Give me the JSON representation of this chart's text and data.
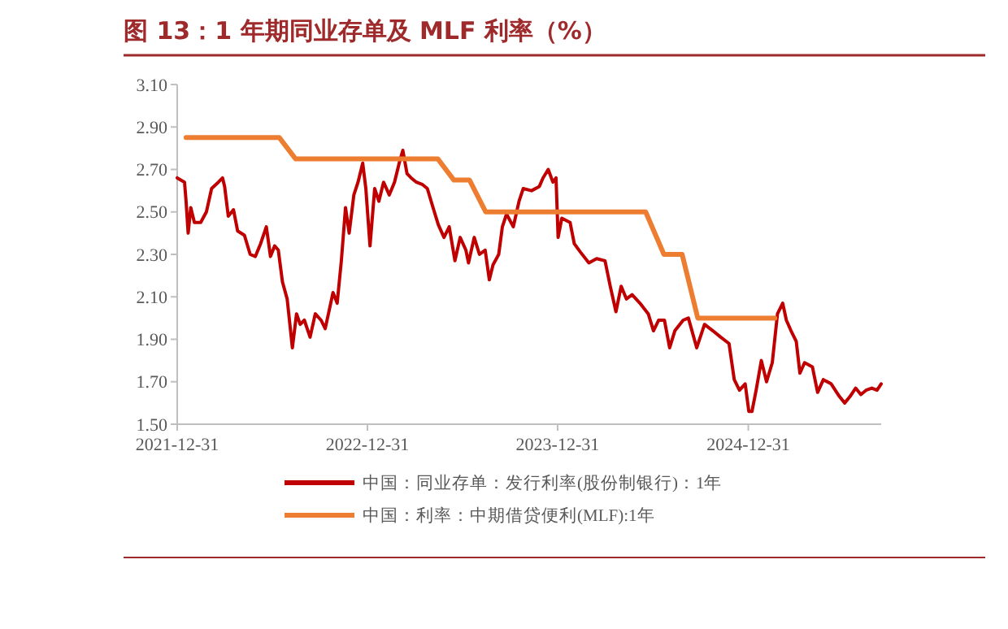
{
  "chart_data": {
    "type": "line",
    "title": "图 13：1 年期同业存单及 MLF 利率（%）",
    "xlim": [
      "2021-12-31",
      "2025-09-12"
    ],
    "xticks": [
      "2021-12-31",
      "2022-12-31",
      "2023-12-31",
      "2024-12-31"
    ],
    "ylim": [
      1.5,
      3.1
    ],
    "yticks": [
      {
        "value": 1.5,
        "label": "1.50"
      },
      {
        "value": 1.7,
        "label": "1.70"
      },
      {
        "value": 1.9,
        "label": "1.90"
      },
      {
        "value": 2.1,
        "label": "2.10"
      },
      {
        "value": 2.3,
        "label": "2.30"
      },
      {
        "value": 2.5,
        "label": "2.50"
      },
      {
        "value": 2.7,
        "label": "2.70"
      },
      {
        "value": 2.9,
        "label": "2.90"
      },
      {
        "value": 3.1,
        "label": "3.10"
      }
    ],
    "grid": false,
    "legend": "bottom",
    "marker": "none",
    "line_style": "solid",
    "series": [
      {
        "name": "中国：同业存单：发行利率(股份制银行)：1年",
        "color": "#c00000",
        "x": [
          "2021-12-31",
          "2022-01-14",
          "2022-01-17",
          "2022-01-21",
          "2022-01-26",
          "2022-02-02",
          "2022-02-14",
          "2022-02-25",
          "2022-03-07",
          "2022-03-20",
          "2022-03-28",
          "2022-04-01",
          "2022-04-08",
          "2022-04-18",
          "2022-04-26",
          "2022-05-09",
          "2022-05-20",
          "2022-05-30",
          "2022-06-09",
          "2022-06-20",
          "2022-06-28",
          "2022-07-06",
          "2022-07-13",
          "2022-07-21",
          "2022-07-30",
          "2022-08-06",
          "2022-08-09",
          "2022-08-17",
          "2022-08-24",
          "2022-09-01",
          "2022-09-12",
          "2022-09-22",
          "2022-10-03",
          "2022-10-11",
          "2022-10-19",
          "2022-10-26",
          "2022-11-03",
          "2022-11-11",
          "2022-11-19",
          "2022-11-26",
          "2022-12-05",
          "2022-12-13",
          "2022-12-22",
          "2022-12-28",
          "2023-01-05",
          "2023-01-14",
          "2023-01-22",
          "2023-01-31",
          "2023-02-11",
          "2023-02-21",
          "2023-03-02",
          "2023-03-09",
          "2023-03-17",
          "2023-03-25",
          "2023-04-04",
          "2023-04-15",
          "2023-04-25",
          "2023-05-06",
          "2023-05-16",
          "2023-05-27",
          "2023-06-06",
          "2023-06-17",
          "2023-06-27",
          "2023-07-08",
          "2023-07-13",
          "2023-07-24",
          "2023-08-03",
          "2023-08-14",
          "2023-08-22",
          "2023-08-29",
          "2023-09-09",
          "2023-09-16",
          "2023-09-24",
          "2023-10-07",
          "2023-10-18",
          "2023-10-26",
          "2023-11-11",
          "2023-11-26",
          "2023-12-03",
          "2023-12-13",
          "2023-12-22",
          "2023-12-28",
          "2024-01-01",
          "2024-01-08",
          "2024-01-24",
          "2024-02-01",
          "2024-02-13",
          "2024-02-29",
          "2024-03-15",
          "2024-03-31",
          "2024-04-10",
          "2024-04-21",
          "2024-05-01",
          "2024-05-11",
          "2024-05-22",
          "2024-06-06",
          "2024-06-22",
          "2024-07-02",
          "2024-07-12",
          "2024-07-23",
          "2024-08-02",
          "2024-08-12",
          "2024-08-28",
          "2024-09-07",
          "2024-09-23",
          "2024-10-08",
          "2024-10-24",
          "2024-11-08",
          "2024-11-24",
          "2024-12-04",
          "2024-12-14",
          "2024-12-25",
          "2025-01-01",
          "2025-01-07",
          "2025-01-15",
          "2025-01-25",
          "2025-02-04",
          "2025-02-15",
          "2025-02-25",
          "2025-03-07",
          "2025-03-14",
          "2025-03-23",
          "2025-04-02",
          "2025-04-09",
          "2025-04-18",
          "2025-05-03",
          "2025-05-13",
          "2025-05-24",
          "2025-06-08",
          "2025-06-24",
          "2025-07-04",
          "2025-07-14",
          "2025-07-25",
          "2025-08-04",
          "2025-08-14",
          "2025-08-25",
          "2025-09-04",
          "2025-09-12"
        ],
        "values": [
          2.66,
          2.64,
          2.55,
          2.4,
          2.52,
          2.45,
          2.45,
          2.5,
          2.61,
          2.64,
          2.66,
          2.62,
          2.48,
          2.51,
          2.41,
          2.39,
          2.3,
          2.29,
          2.35,
          2.43,
          2.29,
          2.34,
          2.32,
          2.17,
          2.09,
          1.93,
          1.86,
          2.02,
          1.97,
          1.99,
          1.91,
          2.02,
          1.99,
          1.95,
          2.04,
          2.12,
          2.07,
          2.27,
          2.52,
          2.4,
          2.58,
          2.64,
          2.73,
          2.61,
          2.34,
          2.61,
          2.55,
          2.64,
          2.58,
          2.64,
          2.73,
          2.79,
          2.68,
          2.66,
          2.64,
          2.63,
          2.61,
          2.52,
          2.44,
          2.38,
          2.43,
          2.27,
          2.38,
          2.32,
          2.26,
          2.38,
          2.3,
          2.32,
          2.18,
          2.25,
          2.3,
          2.43,
          2.49,
          2.43,
          2.55,
          2.61,
          2.6,
          2.62,
          2.66,
          2.7,
          2.64,
          2.66,
          2.38,
          2.47,
          2.45,
          2.35,
          2.31,
          2.26,
          2.28,
          2.27,
          2.15,
          2.03,
          2.15,
          2.09,
          2.11,
          2.07,
          2.02,
          1.94,
          1.99,
          1.99,
          1.86,
          1.94,
          1.99,
          2.0,
          1.86,
          1.97,
          1.94,
          1.91,
          1.88,
          1.71,
          1.66,
          1.69,
          1.56,
          1.56,
          1.66,
          1.8,
          1.7,
          1.79,
          2.02,
          2.07,
          1.99,
          1.94,
          1.89,
          1.74,
          1.79,
          1.77,
          1.65,
          1.71,
          1.69,
          1.63,
          1.6,
          1.63,
          1.67,
          1.64,
          1.66,
          1.67,
          1.66,
          1.69
        ]
      },
      {
        "name": "中国：利率：中期借贷便利(MLF):1年",
        "color": "#ed7d31",
        "x": [
          "2022-01-17",
          "2022-07-15",
          "2022-08-15",
          "2023-05-15",
          "2023-06-15",
          "2023-07-15",
          "2023-08-15",
          "2024-06-17",
          "2024-07-22",
          "2024-08-26",
          "2024-09-25",
          "2025-02-20"
        ],
        "values": [
          2.85,
          2.85,
          2.75,
          2.75,
          2.65,
          2.65,
          2.5,
          2.5,
          2.3,
          2.3,
          2.0,
          2.0
        ]
      }
    ]
  }
}
